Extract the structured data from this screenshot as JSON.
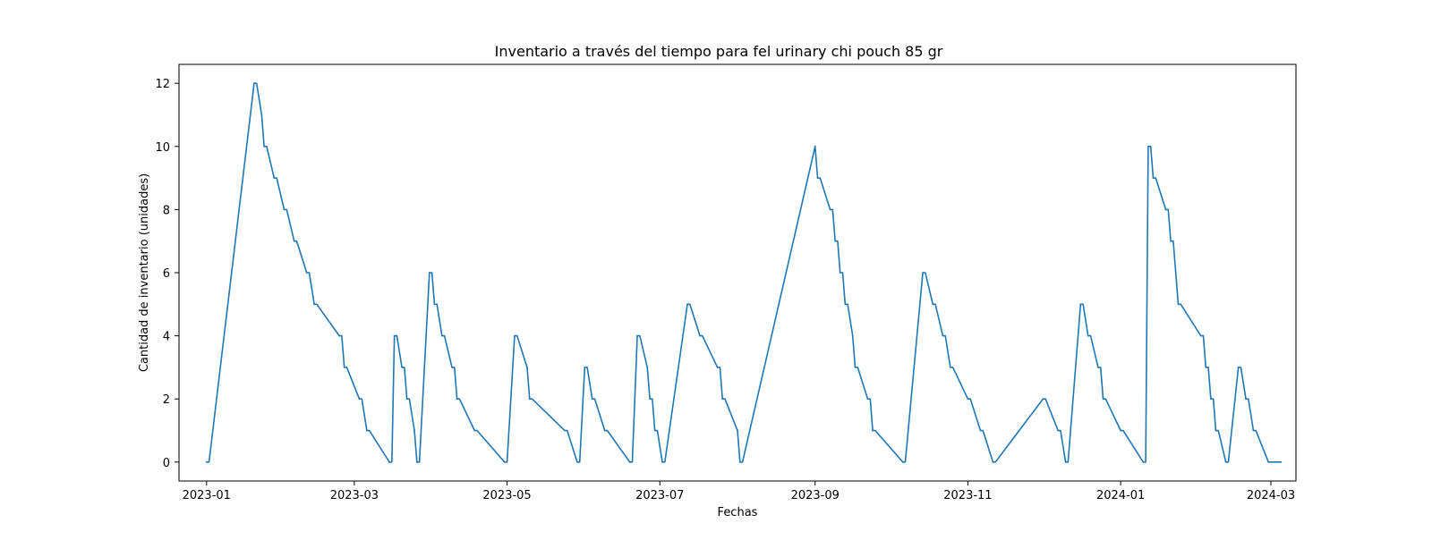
{
  "chart_data": {
    "type": "line",
    "title": "Inventario a través del tiempo para fel urinary chi pouch 85 gr",
    "xlabel": "Fechas",
    "ylabel": "Cantidad de inventario (unidades)",
    "xlim": [
      "2022-12-21",
      "2024-03-11"
    ],
    "ylim": [
      -0.6,
      12.6
    ],
    "grid": false,
    "x_ticks": [
      "2023-01",
      "2023-03",
      "2023-05",
      "2023-07",
      "2023-09",
      "2023-11",
      "2024-01",
      "2024-03"
    ],
    "y_ticks": [
      0,
      2,
      4,
      6,
      8,
      10,
      12
    ],
    "series": [
      {
        "color": "#1f77b4",
        "step": "post",
        "points": [
          [
            "2023-01-01",
            0
          ],
          [
            "2023-01-20",
            12
          ],
          [
            "2023-01-23",
            11
          ],
          [
            "2023-01-24",
            10
          ],
          [
            "2023-01-28",
            9
          ],
          [
            "2023-02-01",
            8
          ],
          [
            "2023-02-05",
            7
          ],
          [
            "2023-02-10",
            6
          ],
          [
            "2023-02-13",
            5
          ],
          [
            "2023-02-23",
            4
          ],
          [
            "2023-02-25",
            3
          ],
          [
            "2023-03-03",
            2
          ],
          [
            "2023-03-06",
            1
          ],
          [
            "2023-03-15",
            0
          ],
          [
            "2023-03-17",
            4
          ],
          [
            "2023-03-20",
            3
          ],
          [
            "2023-03-22",
            2
          ],
          [
            "2023-03-25",
            1
          ],
          [
            "2023-03-26",
            0
          ],
          [
            "2023-03-31",
            6
          ],
          [
            "2023-04-02",
            5
          ],
          [
            "2023-04-05",
            4
          ],
          [
            "2023-04-09",
            3
          ],
          [
            "2023-04-11",
            2
          ],
          [
            "2023-04-18",
            1
          ],
          [
            "2023-04-30",
            0
          ],
          [
            "2023-05-04",
            4
          ],
          [
            "2023-05-09",
            3
          ],
          [
            "2023-05-10",
            2
          ],
          [
            "2023-05-24",
            1
          ],
          [
            "2023-05-29",
            0
          ],
          [
            "2023-06-01",
            3
          ],
          [
            "2023-06-04",
            2
          ],
          [
            "2023-06-09",
            1
          ],
          [
            "2023-06-19",
            0
          ],
          [
            "2023-06-22",
            4
          ],
          [
            "2023-06-26",
            3
          ],
          [
            "2023-06-27",
            2
          ],
          [
            "2023-06-29",
            1
          ],
          [
            "2023-07-02",
            0
          ],
          [
            "2023-07-12",
            5
          ],
          [
            "2023-07-17",
            4
          ],
          [
            "2023-07-24",
            3
          ],
          [
            "2023-07-26",
            2
          ],
          [
            "2023-08-01",
            1
          ],
          [
            "2023-08-02",
            0
          ],
          [
            "2023-09-01",
            10
          ],
          [
            "2023-09-02",
            9
          ],
          [
            "2023-09-07",
            8
          ],
          [
            "2023-09-09",
            7
          ],
          [
            "2023-09-11",
            6
          ],
          [
            "2023-09-13",
            5
          ],
          [
            "2023-09-16",
            4
          ],
          [
            "2023-09-17",
            3
          ],
          [
            "2023-09-22",
            2
          ],
          [
            "2023-09-24",
            1
          ],
          [
            "2023-10-06",
            0
          ],
          [
            "2023-10-14",
            6
          ],
          [
            "2023-10-18",
            5
          ],
          [
            "2023-10-22",
            4
          ],
          [
            "2023-10-25",
            3
          ],
          [
            "2023-11-01",
            2
          ],
          [
            "2023-11-06",
            1
          ],
          [
            "2023-11-11",
            0
          ],
          [
            "2023-12-01",
            2
          ],
          [
            "2023-12-07",
            1
          ],
          [
            "2023-12-10",
            0
          ],
          [
            "2023-12-16",
            5
          ],
          [
            "2023-12-19",
            4
          ],
          [
            "2023-12-23",
            3
          ],
          [
            "2023-12-25",
            2
          ],
          [
            "2024-01-01",
            1
          ],
          [
            "2024-01-10",
            0
          ],
          [
            "2024-01-12",
            10
          ],
          [
            "2024-01-14",
            9
          ],
          [
            "2024-01-19",
            8
          ],
          [
            "2024-01-21",
            7
          ],
          [
            "2024-01-24",
            5
          ],
          [
            "2024-02-02",
            4
          ],
          [
            "2024-02-04",
            3
          ],
          [
            "2024-02-06",
            2
          ],
          [
            "2024-02-08",
            1
          ],
          [
            "2024-02-12",
            0
          ],
          [
            "2024-02-17",
            3
          ],
          [
            "2024-02-20",
            2
          ],
          [
            "2024-02-23",
            1
          ],
          [
            "2024-02-29",
            0
          ],
          [
            "2024-03-05",
            0
          ]
        ]
      }
    ]
  }
}
